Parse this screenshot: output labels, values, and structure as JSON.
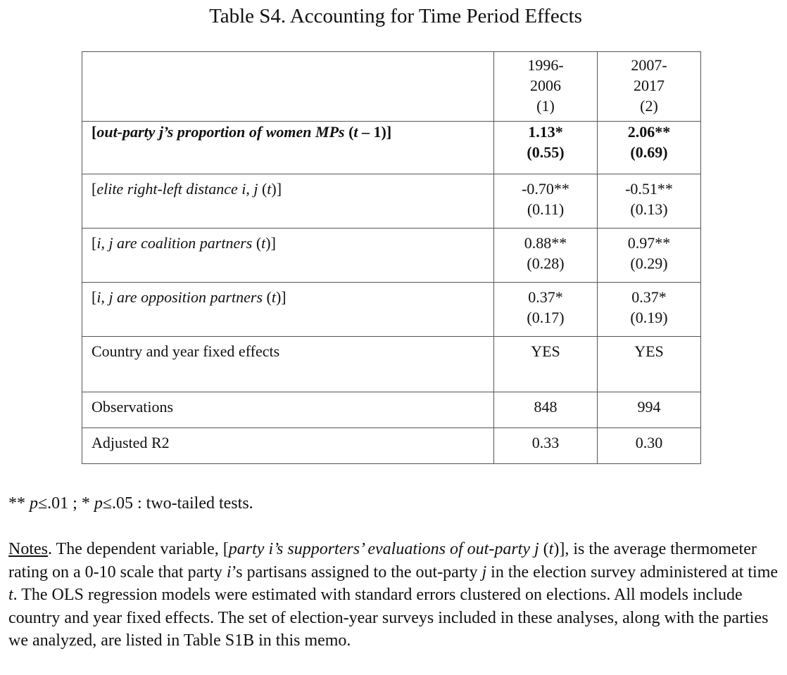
{
  "title": "Table S4. Accounting for Time Period Effects",
  "columns": [
    {
      "years_top": "1996-",
      "years_bottom": "2006",
      "model": "(1)"
    },
    {
      "years_top": "2007-",
      "years_bottom": "2017",
      "model": "(2)"
    }
  ],
  "rows": [
    {
      "label_open": "[",
      "label_italic": "out-party j’s proportion of women MPs",
      "label_paren_open": " (",
      "label_paren_italic": "t",
      "label_paren_close": " – 1)]",
      "bold": true,
      "c1_coef": "1.13*",
      "c1_se": "(0.55)",
      "c2_coef": "2.06**",
      "c2_se": "(0.69)"
    },
    {
      "label_open": "[",
      "label_italic": "elite right-left distance i",
      "label_mid": ", ",
      "label_italic2": "j",
      "label_paren_open": " (",
      "label_paren_italic": "t",
      "label_paren_close": ")]",
      "c1_coef": "-0.70**",
      "c1_se": "(0.11)",
      "c2_coef": "-0.51**",
      "c2_se": "(0.13)"
    },
    {
      "label_open": "[",
      "label_italic": "i, j are coalition partners",
      "label_paren_open": " (",
      "label_paren_italic": "t",
      "label_paren_close": ")]",
      "c1_coef": "0.88**",
      "c1_se": "(0.28)",
      "c2_coef": "0.97**",
      "c2_se": "(0.29)"
    },
    {
      "label_open": "[",
      "label_italic": "i, j are opposition partners",
      "label_paren_open": " (",
      "label_paren_italic": "t",
      "label_paren_close": ")]",
      "c1_coef": "0.37*",
      "c1_se": "(0.17)",
      "c2_coef": "0.37*",
      "c2_se": "(0.19)"
    },
    {
      "label": "Country and year fixed effects",
      "c1": "YES",
      "c2": "YES"
    },
    {
      "label": "Observations",
      "c1": "848",
      "c2": "994"
    },
    {
      "label": "Adjusted R2",
      "c1": "0.33",
      "c2": "0.30"
    }
  ],
  "significance": {
    "s1": "** ",
    "p1": "p",
    "t1": "≤.01 ; * ",
    "p2": "p",
    "t2": "≤.05 : two-tailed tests."
  },
  "notes": {
    "lead": "Notes",
    "t1": ". The dependent variable, [",
    "i1": "party i’s supporters’ evaluations of out-party j",
    "t2": " (",
    "i2": "t",
    "t3": ")], is the average thermometer rating on a 0-10 scale that party ",
    "i3": "i",
    "t4": "’s partisans assigned to the out-party ",
    "i4": "j",
    "t5": " in the election survey administered at time ",
    "i5": "t",
    "t6": ".   The OLS regression models were estimated with standard errors clustered on elections. All models include country and year fixed effects.  The set of election-year surveys included in these analyses, along with the parties we analyzed, are listed in Table S1B in this memo."
  }
}
